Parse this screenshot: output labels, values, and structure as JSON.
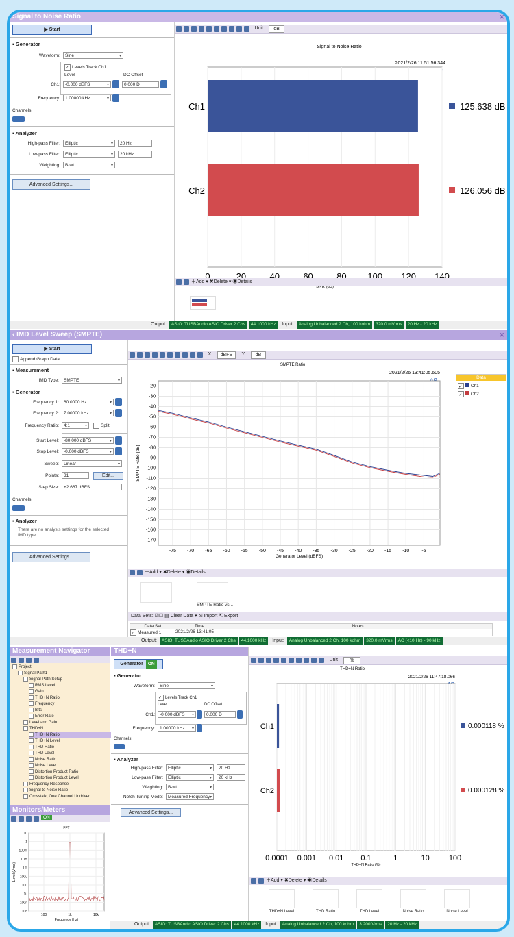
{
  "snr": {
    "title": "Signal to Noise Ratio",
    "start_label": "Start",
    "generator_heading": "Generator",
    "waveform_label": "Waveform:",
    "waveform_value": "Sine",
    "levels_track": "Levels Track Ch1",
    "level_hdr": "Level",
    "dc_hdr": "DC Offset",
    "ch1_label": "Ch1:",
    "ch1_level": "-0.000 dBFS",
    "ch1_dc": "0.000 D",
    "frequency_label": "Frequency:",
    "frequency_value": "1.00000 kHz",
    "channels_label": "Channels:",
    "analyzer_heading": "Analyzer",
    "hp_label": "High-pass Filter:",
    "hp_type": "Elliptic",
    "hp_value": "20 Hz",
    "lp_label": "Low-pass Filter:",
    "lp_type": "Elliptic",
    "lp_value": "20 kHz",
    "weighting_label": "Weighting:",
    "weighting_value": "B-wt.",
    "advanced_label": "Advanced Settings...",
    "unit_label": "Unit",
    "unit_value": "dB",
    "graph_title": "Signal to Noise Ratio",
    "timestamp": "2021/2/26 11:51:56.344",
    "logo": "AP",
    "add_label": "Add",
    "delete_label": "Delete",
    "details_label": "Details",
    "output_label": "Output:",
    "output_value": "ASIO: TUSBAudio ASIO Driver 2 Chs",
    "output_rate": "44.1000 kHz",
    "input_label": "Input:",
    "input_value": "Analog Unbalanced 2 Ch, 100 kohm",
    "input_level": "320.0 mVrms",
    "input_bw": "20 Hz - 20 kHz"
  },
  "imd": {
    "title": "IMD Level Sweep (SMPTE)",
    "start_label": "Start",
    "append_label": "Append Graph Data",
    "measurement_heading": "Measurement",
    "imd_type_label": "IMD Type:",
    "imd_type_value": "SMPTE",
    "generator_heading": "Generator",
    "f1_label": "Frequency 1:",
    "f1_value": "60.0000 Hz",
    "f2_label": "Frequency 2:",
    "f2_value": "7.00000 kHz",
    "ratio_label": "Frequency Ratio:",
    "ratio_value": "4:1",
    "split_label": "Split",
    "start_level_label": "Start Level:",
    "start_level_value": "-80.000 dBFS",
    "stop_level_label": "Stop Level:",
    "stop_level_value": "-0.000 dBFS",
    "sweep_label": "Sweep:",
    "sweep_value": "Linear",
    "points_label": "Points:",
    "points_value": "31",
    "edit_label": "Edit...",
    "step_label": "Step Size:",
    "step_value": "+2.667 dBFS",
    "channels_label": "Channels:",
    "analyzer_heading": "Analyzer",
    "analyzer_note": "There are no analysis settings for the selected IMD type.",
    "advanced_label": "Advanced Settings...",
    "x_unit_label": "X",
    "x_unit": "dBFS",
    "y_unit_label": "Y",
    "y_unit": "dB",
    "graph_title": "SMPTE Ratio",
    "timestamp": "2021/2/26 13:41:05.605",
    "logo": "AP",
    "legend_title": "Data",
    "legend_ch1": "Ch1",
    "legend_ch2": "Ch2",
    "add_label": "Add",
    "delete_label": "Delete",
    "details_label": "Details",
    "thumb_label": "SMPTE Ratio vs...",
    "datasets_label": "Data Sets:",
    "clear_label": "Clear Data",
    "import_label": "Import",
    "export_label": "Export",
    "cols": [
      "Data Set",
      "Time",
      "Notes"
    ],
    "row": [
      "Measured 1",
      "2021/2/26 13:41:05",
      ""
    ],
    "output_label": "Output:",
    "output_value": "ASIO: TUSBAudio ASIO Driver 2 Chs",
    "output_rate": "44.1000 kHz",
    "input_label": "Input:",
    "input_value": "Analog Unbalanced 2 Ch, 100 kohm",
    "input_level": "320.0 mVrms",
    "input_bw": "AC (<10 Hz) - 90 kHz"
  },
  "thd": {
    "nav_title": "Measurement Navigator",
    "nav_items": [
      "Project",
      "Signal Path1",
      "Signal Path Setup",
      "RMS Level",
      "Gain",
      "THD+N Ratio",
      "Frequency",
      "Bits",
      "Error Rate",
      "Level and Gain",
      "THD+N",
      "THD+N Ratio",
      "THD+N Level",
      "THD Ratio",
      "THD Level",
      "Noise Ratio",
      "Noise Level",
      "Distortion Product Ratio",
      "Distortion Product Level",
      "Frequency Response",
      "Signal to Noise Ratio",
      "Crosstalk, One Channel Undriven"
    ],
    "monitors_title": "Monitors/Meters",
    "on_label": "ON",
    "fft_title": "FFT",
    "fft_ylabel": "Level (Vrms)",
    "fft_xlabel": "Frequency (Hz)",
    "fft_yticks": [
      "10",
      "1",
      "100m",
      "10m",
      "1m",
      "100u",
      "10u",
      "1u",
      "100n",
      "10n"
    ],
    "fft_xticks": [
      "100",
      "1k",
      "10k"
    ],
    "title": "THD+N",
    "generator_btn": "Generator",
    "generator_heading": "Generator",
    "waveform_label": "Waveform:",
    "waveform_value": "Sine",
    "levels_track": "Levels Track Ch1",
    "level_hdr": "Level",
    "dc_hdr": "DC Offset",
    "ch1_label": "Ch1:",
    "ch1_level": "-0.000 dBFS",
    "ch1_dc": "0.000 D",
    "frequency_label": "Frequency:",
    "frequency_value": "1.00000 kHz",
    "channels_label": "Channels:",
    "analyzer_heading": "Analyzer",
    "hp_label": "High-pass Filter:",
    "hp_type": "Elliptic",
    "hp_value": "20 Hz",
    "lp_label": "Low-pass Filter:",
    "lp_type": "Elliptic",
    "lp_value": "20 kHz",
    "weighting_label": "Weighting:",
    "weighting_value": "B-wt.",
    "notch_label": "Notch Tuning Mode:",
    "notch_value": "Measured Frequency",
    "advanced_label": "Advanced Settings...",
    "unit_label": "Unit",
    "unit_value": "%",
    "graph_title": "THD+N Ratio",
    "timestamp": "2021/2/26 11:47:18.066",
    "logo": "AP",
    "add_label": "Add",
    "delete_label": "Delete",
    "details_label": "Details",
    "thumbs": [
      "THD+N Level",
      "THD Ratio",
      "THD Level",
      "Noise Ratio",
      "Noise Level"
    ],
    "output_label": "Output:",
    "output_value": "ASIO: TUSBAudio ASIO Driver 2 Chs",
    "output_rate": "44.1000 kHz",
    "input_label": "Input:",
    "input_value": "Analog Unbalanced 2 Ch, 100 kohm",
    "input_level": "3.200 Vrms",
    "input_bw": "20 Hz - 20 kHz"
  },
  "chart_data": [
    {
      "type": "bar",
      "orientation": "horizontal",
      "title": "Signal to Noise Ratio",
      "categories": [
        "Ch1",
        "Ch2"
      ],
      "values": [
        125.638,
        126.056
      ],
      "value_labels": [
        "125.638 dB",
        "126.056 dB"
      ],
      "colors": [
        "#3a5499",
        "#d24b4e"
      ],
      "xlabel": "SNR (dB)",
      "xlim": [
        0,
        140
      ],
      "xticks": [
        0,
        20,
        40,
        60,
        80,
        100,
        120,
        140
      ]
    },
    {
      "type": "line",
      "title": "SMPTE Ratio",
      "xlabel": "Generator Level (dBFS)",
      "ylabel": "SMPTE Ratio (dB)",
      "xlim": [
        -79,
        -0.5
      ],
      "ylim": [
        -175,
        -15
      ],
      "xticks": [
        -75,
        -70,
        -65,
        -60,
        -55,
        -50,
        -45,
        -40,
        -35,
        -30,
        -25,
        -20,
        -15,
        -10,
        -5
      ],
      "yticks": [
        -20,
        -30,
        -40,
        -50,
        -60,
        -70,
        -80,
        -90,
        -100,
        -110,
        -120,
        -130,
        -140,
        -150,
        -160,
        -170
      ],
      "series": [
        {
          "name": "Ch1",
          "color": "#2a3f8f",
          "x": [
            -80,
            -75,
            -70,
            -65,
            -60,
            -55,
            -50,
            -45,
            -40,
            -35,
            -30,
            -25,
            -20,
            -15,
            -10,
            -5,
            -2.5,
            0
          ],
          "y": [
            -43,
            -46.5,
            -51,
            -55,
            -60,
            -64.5,
            -69,
            -73.5,
            -77.5,
            -81.5,
            -87.5,
            -94,
            -98.5,
            -102,
            -105,
            -107,
            -108,
            -104
          ]
        },
        {
          "name": "Ch2",
          "color": "#c33b3f",
          "x": [
            -80,
            -75,
            -70,
            -65,
            -60,
            -55,
            -50,
            -45,
            -40,
            -35,
            -30,
            -25,
            -20,
            -15,
            -10,
            -5,
            -2.5,
            0
          ],
          "y": [
            -44,
            -47.5,
            -52,
            -56,
            -61,
            -65.5,
            -70,
            -74.5,
            -78.5,
            -82.5,
            -88.5,
            -95,
            -99.5,
            -103,
            -106,
            -108.5,
            -109,
            -105
          ]
        }
      ],
      "legend": "top-right"
    },
    {
      "type": "bar",
      "orientation": "horizontal",
      "title": "THD+N Ratio",
      "categories": [
        "Ch1",
        "Ch2"
      ],
      "values": [
        0.000118,
        0.000128
      ],
      "value_labels": [
        "0.000118 %",
        "0.000128 %"
      ],
      "colors": [
        "#3a5499",
        "#d24b4e"
      ],
      "xlabel": "THD+N Ratio (%)",
      "xscale": "log",
      "xticks": [
        "0.0001",
        "0.001",
        "0.01",
        "0.1",
        "1",
        "10",
        "100"
      ]
    }
  ]
}
